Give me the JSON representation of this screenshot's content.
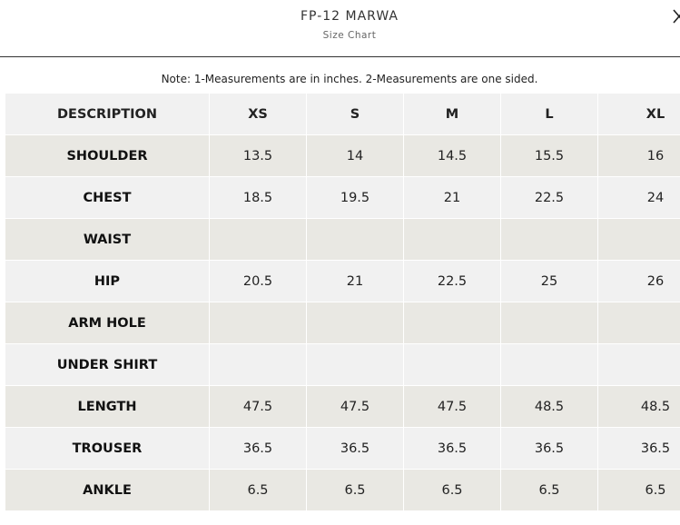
{
  "header": {
    "title": "FP-12 MARWA",
    "subtitle": "Size Chart"
  },
  "note": "Note: 1-Measurements are in inches. 2-Measurements are one sided.",
  "table": {
    "columns": [
      "DESCRIPTION",
      "XS",
      "S",
      "M",
      "L",
      "XL"
    ],
    "rows": [
      [
        "SHOULDER",
        "13.5",
        "14",
        "14.5",
        "15.5",
        "16"
      ],
      [
        "CHEST",
        "18.5",
        "19.5",
        "21",
        "22.5",
        "24"
      ],
      [
        "WAIST",
        null,
        null,
        null,
        null,
        null
      ],
      [
        "HIP",
        "20.5",
        "21",
        "22.5",
        "25",
        "26"
      ],
      [
        "ARM HOLE",
        null,
        null,
        null,
        null,
        null
      ],
      [
        "UNDER SHIRT",
        null,
        null,
        null,
        null,
        null
      ],
      [
        "LENGTH",
        "47.5",
        "47.5",
        "47.5",
        "48.5",
        "48.5"
      ],
      [
        "TROUSER",
        "36.5",
        "36.5",
        "36.5",
        "36.5",
        "36.5"
      ],
      [
        "ANKLE",
        "6.5",
        "6.5",
        "6.5",
        "6.5",
        "6.5"
      ]
    ]
  }
}
